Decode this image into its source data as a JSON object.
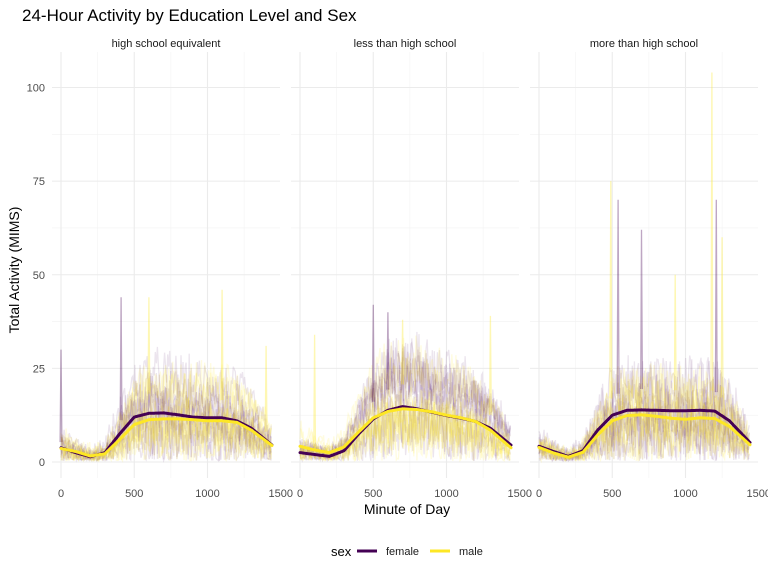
{
  "chart_data": {
    "type": "line",
    "title": "24-Hour Activity by Education Level and Sex",
    "xlabel": "Minute of Day",
    "ylabel": "Total Activity (MIMS)",
    "xlim": [
      0,
      1440
    ],
    "ylim": [
      0,
      105
    ],
    "x_ticks": [
      0,
      500,
      1000,
      1500
    ],
    "y_ticks": [
      0,
      25,
      50,
      75,
      100
    ],
    "grid": true,
    "legend": {
      "title": "sex",
      "placement": "bottom",
      "entries": [
        {
          "label": "female",
          "color": "#440154"
        },
        {
          "label": "male",
          "color": "#FDE725"
        }
      ]
    },
    "panels": [
      {
        "label": "high school equivalent",
        "smooth": [
          {
            "name": "female",
            "color": "#440154",
            "x": [
              0,
              100,
              200,
              300,
              400,
              500,
              600,
              700,
              800,
              900,
              1000,
              1100,
              1200,
              1300,
              1440
            ],
            "y": [
              3.8,
              2.5,
              1.4,
              2.5,
              7.5,
              12,
              13,
              13.1,
              12.6,
              12,
              11.8,
              11.8,
              11,
              9,
              4.5
            ]
          },
          {
            "name": "male",
            "color": "#FDE725",
            "x": [
              0,
              100,
              200,
              300,
              400,
              500,
              600,
              700,
              800,
              900,
              1000,
              1100,
              1200,
              1300,
              1440
            ],
            "y": [
              3.6,
              2.8,
              1.6,
              2.2,
              6,
              10,
              11.3,
              11.5,
              11.5,
              11.3,
              11,
              11,
              10.6,
              8.5,
              4.4
            ]
          }
        ],
        "spikes": [
          {
            "x": 410,
            "y": 44,
            "color": "#440154"
          },
          {
            "x": 600,
            "y": 44,
            "color": "#FDE725"
          },
          {
            "x": 1100,
            "y": 46,
            "color": "#FDE725"
          },
          {
            "x": 0,
            "y": 30,
            "color": "#440154"
          },
          {
            "x": 1400,
            "y": 31,
            "color": "#FDE725"
          }
        ]
      },
      {
        "label": "less than high school",
        "smooth": [
          {
            "name": "female",
            "color": "#440154",
            "x": [
              0,
              100,
              200,
              300,
              400,
              500,
              600,
              700,
              800,
              900,
              1000,
              1100,
              1200,
              1300,
              1440
            ],
            "y": [
              2.5,
              2,
              1.5,
              3,
              7.5,
              11.5,
              13.8,
              14.8,
              14.2,
              13.3,
              12.4,
              11.7,
              10.8,
              9,
              4.5
            ]
          },
          {
            "name": "male",
            "color": "#FDE725",
            "x": [
              0,
              100,
              200,
              300,
              400,
              500,
              600,
              700,
              800,
              900,
              1000,
              1100,
              1200,
              1300,
              1440
            ],
            "y": [
              4.2,
              3.2,
              2.5,
              4,
              8,
              11.8,
              13.5,
              14.2,
              14,
              13.4,
              12.5,
              11.8,
              10.8,
              8.5,
              3.8
            ]
          }
        ],
        "spikes": [
          {
            "x": 500,
            "y": 42,
            "color": "#440154"
          },
          {
            "x": 600,
            "y": 40,
            "color": "#440154"
          },
          {
            "x": 700,
            "y": 38,
            "color": "#FDE725"
          },
          {
            "x": 100,
            "y": 34,
            "color": "#FDE725"
          },
          {
            "x": 1300,
            "y": 39,
            "color": "#FDE725"
          }
        ]
      },
      {
        "label": "more than high school",
        "smooth": [
          {
            "name": "female",
            "color": "#440154",
            "x": [
              0,
              100,
              200,
              300,
              400,
              500,
              600,
              700,
              800,
              900,
              1000,
              1100,
              1200,
              1300,
              1440
            ],
            "y": [
              4.2,
              2.8,
              1.5,
              3,
              8.5,
              12.5,
              13.8,
              13.9,
              13.8,
              13.7,
              13.7,
              13.8,
              13.6,
              11,
              5.2
            ]
          },
          {
            "name": "male",
            "color": "#FDE725",
            "x": [
              0,
              100,
              200,
              300,
              400,
              500,
              600,
              700,
              800,
              900,
              1000,
              1100,
              1200,
              1300,
              1440
            ],
            "y": [
              3.9,
              2.4,
              1.3,
              2.6,
              7.2,
              11,
              12.4,
              12.6,
              12.2,
              11.7,
              11.4,
              11.8,
              11.6,
              9.5,
              4.6
            ]
          }
        ],
        "spikes": [
          {
            "x": 490,
            "y": 75,
            "color": "#FDE725"
          },
          {
            "x": 540,
            "y": 70,
            "color": "#440154"
          },
          {
            "x": 1180,
            "y": 104,
            "color": "#FDE725"
          },
          {
            "x": 1210,
            "y": 70,
            "color": "#440154"
          },
          {
            "x": 1250,
            "y": 60,
            "color": "#FDE725"
          },
          {
            "x": 700,
            "y": 62,
            "color": "#440154"
          },
          {
            "x": 930,
            "y": 50,
            "color": "#FDE725"
          }
        ]
      }
    ]
  }
}
